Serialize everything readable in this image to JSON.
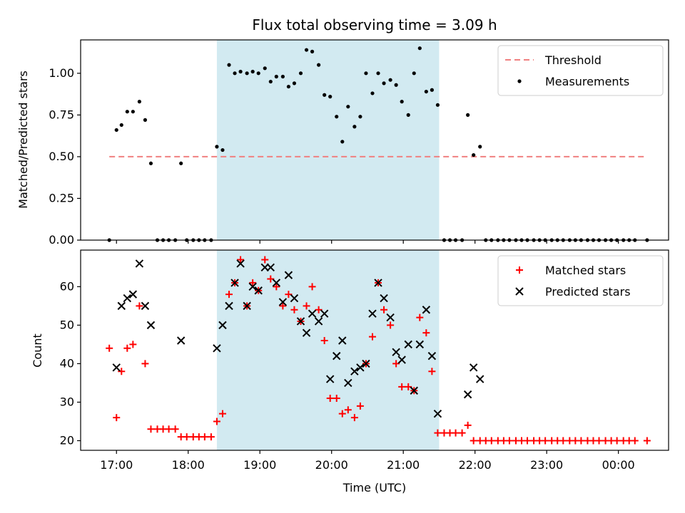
{
  "chart_data": {
    "title": "Flux total observing time = 3.09 h",
    "xlabel": "Time (UTC)",
    "x_ticks": [
      "17:00",
      "18:00",
      "19:00",
      "20:00",
      "21:00",
      "22:00",
      "23:00",
      "00:00"
    ],
    "x_range_hours": [
      16.5,
      24.7
    ],
    "shaded_span_hours": [
      18.4,
      21.5
    ],
    "shade_color": "#add8e6",
    "panels": [
      {
        "type": "scatter",
        "ylabel": "Matched/Predicted stars",
        "ylim": [
          0,
          1.2
        ],
        "y_ticks": [
          "0.00",
          "0.25",
          "0.50",
          "0.75",
          "1.00"
        ],
        "legend_position": "top-right",
        "threshold": {
          "name": "Threshold",
          "value": 0.5,
          "x": [
            16.9,
            24.4
          ],
          "color": "#f08080"
        },
        "series": [
          {
            "name": "Measurements",
            "color": "#000000",
            "marker": "dot",
            "points": [
              [
                16.9,
                0.0
              ],
              [
                17.0,
                0.66
              ],
              [
                17.07,
                0.69
              ],
              [
                17.15,
                0.77
              ],
              [
                17.23,
                0.77
              ],
              [
                17.32,
                0.83
              ],
              [
                17.4,
                0.72
              ],
              [
                17.48,
                0.46
              ],
              [
                17.57,
                0.0
              ],
              [
                17.65,
                0.0
              ],
              [
                17.73,
                0.0
              ],
              [
                17.82,
                0.0
              ],
              [
                17.9,
                0.46
              ],
              [
                17.98,
                0.0
              ],
              [
                18.07,
                0.0
              ],
              [
                18.15,
                0.0
              ],
              [
                18.23,
                0.0
              ],
              [
                18.32,
                0.0
              ],
              [
                18.4,
                0.56
              ],
              [
                18.48,
                0.54
              ],
              [
                18.57,
                1.05
              ],
              [
                18.65,
                1.0
              ],
              [
                18.73,
                1.01
              ],
              [
                18.82,
                1.0
              ],
              [
                18.9,
                1.01
              ],
              [
                18.98,
                1.0
              ],
              [
                19.07,
                1.03
              ],
              [
                19.15,
                0.95
              ],
              [
                19.23,
                0.98
              ],
              [
                19.32,
                0.98
              ],
              [
                19.4,
                0.92
              ],
              [
                19.48,
                0.94
              ],
              [
                19.57,
                1.0
              ],
              [
                19.65,
                1.14
              ],
              [
                19.73,
                1.13
              ],
              [
                19.82,
                1.05
              ],
              [
                19.9,
                0.87
              ],
              [
                19.98,
                0.86
              ],
              [
                20.07,
                0.74
              ],
              [
                20.15,
                0.59
              ],
              [
                20.23,
                0.8
              ],
              [
                20.32,
                0.68
              ],
              [
                20.4,
                0.74
              ],
              [
                20.48,
                1.0
              ],
              [
                20.57,
                0.88
              ],
              [
                20.65,
                1.0
              ],
              [
                20.73,
                0.94
              ],
              [
                20.82,
                0.96
              ],
              [
                20.9,
                0.93
              ],
              [
                20.98,
                0.83
              ],
              [
                21.07,
                0.75
              ],
              [
                21.15,
                1.0
              ],
              [
                21.23,
                1.15
              ],
              [
                21.32,
                0.89
              ],
              [
                21.4,
                0.9
              ],
              [
                21.48,
                0.81
              ],
              [
                21.57,
                0.0
              ],
              [
                21.65,
                0.0
              ],
              [
                21.73,
                0.0
              ],
              [
                21.82,
                0.0
              ],
              [
                21.9,
                0.75
              ],
              [
                21.98,
                0.51
              ],
              [
                22.07,
                0.56
              ],
              [
                22.15,
                0.0
              ],
              [
                22.23,
                0.0
              ],
              [
                22.32,
                0.0
              ],
              [
                22.4,
                0.0
              ],
              [
                22.48,
                0.0
              ],
              [
                22.57,
                0.0
              ],
              [
                22.65,
                0.0
              ],
              [
                22.73,
                0.0
              ],
              [
                22.82,
                0.0
              ],
              [
                22.9,
                0.0
              ],
              [
                22.98,
                0.0
              ],
              [
                23.07,
                0.0
              ],
              [
                23.15,
                0.0
              ],
              [
                23.23,
                0.0
              ],
              [
                23.32,
                0.0
              ],
              [
                23.4,
                0.0
              ],
              [
                23.48,
                0.0
              ],
              [
                23.57,
                0.0
              ],
              [
                23.65,
                0.0
              ],
              [
                23.73,
                0.0
              ],
              [
                23.82,
                0.0
              ],
              [
                23.9,
                0.0
              ],
              [
                23.98,
                0.0
              ],
              [
                24.07,
                0.0
              ],
              [
                24.15,
                0.0
              ],
              [
                24.23,
                0.0
              ],
              [
                24.4,
                0.0
              ]
            ]
          }
        ]
      },
      {
        "type": "scatter",
        "ylabel": "Count",
        "ylim": [
          17.5,
          69.5
        ],
        "y_ticks": [
          "20",
          "30",
          "40",
          "50",
          "60"
        ],
        "legend_position": "top-right",
        "series": [
          {
            "name": "Matched stars",
            "color": "#ff0000",
            "marker": "plus",
            "points": [
              [
                16.9,
                44
              ],
              [
                17.0,
                26
              ],
              [
                17.07,
                38
              ],
              [
                17.15,
                44
              ],
              [
                17.23,
                45
              ],
              [
                17.32,
                55
              ],
              [
                17.4,
                40
              ],
              [
                17.48,
                23
              ],
              [
                17.57,
                23
              ],
              [
                17.65,
                23
              ],
              [
                17.73,
                23
              ],
              [
                17.82,
                23
              ],
              [
                17.9,
                21
              ],
              [
                17.98,
                21
              ],
              [
                18.07,
                21
              ],
              [
                18.15,
                21
              ],
              [
                18.23,
                21
              ],
              [
                18.32,
                21
              ],
              [
                18.4,
                25
              ],
              [
                18.48,
                27
              ],
              [
                18.57,
                58
              ],
              [
                18.65,
                61
              ],
              [
                18.73,
                67
              ],
              [
                18.82,
                55
              ],
              [
                18.9,
                61
              ],
              [
                18.98,
                59
              ],
              [
                19.07,
                67
              ],
              [
                19.15,
                62
              ],
              [
                19.23,
                60
              ],
              [
                19.32,
                55
              ],
              [
                19.4,
                58
              ],
              [
                19.48,
                54
              ],
              [
                19.57,
                51
              ],
              [
                19.65,
                55
              ],
              [
                19.73,
                60
              ],
              [
                19.82,
                54
              ],
              [
                19.9,
                46
              ],
              [
                19.98,
                31
              ],
              [
                20.07,
                31
              ],
              [
                20.15,
                27
              ],
              [
                20.23,
                28
              ],
              [
                20.32,
                26
              ],
              [
                20.4,
                29
              ],
              [
                20.48,
                40
              ],
              [
                20.57,
                47
              ],
              [
                20.65,
                61
              ],
              [
                20.73,
                54
              ],
              [
                20.82,
                50
              ],
              [
                20.9,
                40
              ],
              [
                20.98,
                34
              ],
              [
                21.07,
                34
              ],
              [
                21.15,
                33
              ],
              [
                21.23,
                52
              ],
              [
                21.32,
                48
              ],
              [
                21.4,
                38
              ],
              [
                21.48,
                22
              ],
              [
                21.57,
                22
              ],
              [
                21.65,
                22
              ],
              [
                21.73,
                22
              ],
              [
                21.82,
                22
              ],
              [
                21.9,
                24
              ],
              [
                21.98,
                20
              ],
              [
                22.07,
                20
              ],
              [
                22.15,
                20
              ],
              [
                22.23,
                20
              ],
              [
                22.32,
                20
              ],
              [
                22.4,
                20
              ],
              [
                22.48,
                20
              ],
              [
                22.57,
                20
              ],
              [
                22.65,
                20
              ],
              [
                22.73,
                20
              ],
              [
                22.82,
                20
              ],
              [
                22.9,
                20
              ],
              [
                22.98,
                20
              ],
              [
                23.07,
                20
              ],
              [
                23.15,
                20
              ],
              [
                23.23,
                20
              ],
              [
                23.32,
                20
              ],
              [
                23.4,
                20
              ],
              [
                23.48,
                20
              ],
              [
                23.57,
                20
              ],
              [
                23.65,
                20
              ],
              [
                23.73,
                20
              ],
              [
                23.82,
                20
              ],
              [
                23.9,
                20
              ],
              [
                23.98,
                20
              ],
              [
                24.07,
                20
              ],
              [
                24.15,
                20
              ],
              [
                24.23,
                20
              ],
              [
                24.4,
                20
              ]
            ]
          },
          {
            "name": "Predicted stars",
            "color": "#000000",
            "marker": "cross",
            "points": [
              [
                17.0,
                39
              ],
              [
                17.07,
                55
              ],
              [
                17.15,
                57
              ],
              [
                17.23,
                58
              ],
              [
                17.32,
                66
              ],
              [
                17.4,
                55
              ],
              [
                17.48,
                50
              ],
              [
                17.9,
                46
              ],
              [
                18.4,
                44
              ],
              [
                18.48,
                50
              ],
              [
                18.57,
                55
              ],
              [
                18.65,
                61
              ],
              [
                18.73,
                66
              ],
              [
                18.82,
                55
              ],
              [
                18.9,
                60
              ],
              [
                18.98,
                59
              ],
              [
                19.07,
                65
              ],
              [
                19.15,
                65
              ],
              [
                19.23,
                61
              ],
              [
                19.32,
                56
              ],
              [
                19.4,
                63
              ],
              [
                19.48,
                57
              ],
              [
                19.57,
                51
              ],
              [
                19.65,
                48
              ],
              [
                19.73,
                53
              ],
              [
                19.82,
                51
              ],
              [
                19.9,
                53
              ],
              [
                19.98,
                36
              ],
              [
                20.07,
                42
              ],
              [
                20.15,
                46
              ],
              [
                20.23,
                35
              ],
              [
                20.32,
                38
              ],
              [
                20.4,
                39
              ],
              [
                20.48,
                40
              ],
              [
                20.57,
                53
              ],
              [
                20.65,
                61
              ],
              [
                20.73,
                57
              ],
              [
                20.82,
                52
              ],
              [
                20.9,
                43
              ],
              [
                20.98,
                41
              ],
              [
                21.07,
                45
              ],
              [
                21.15,
                33
              ],
              [
                21.23,
                45
              ],
              [
                21.32,
                54
              ],
              [
                21.4,
                42
              ],
              [
                21.48,
                27
              ],
              [
                21.9,
                32
              ],
              [
                21.98,
                39
              ],
              [
                22.07,
                36
              ]
            ]
          }
        ]
      }
    ]
  }
}
